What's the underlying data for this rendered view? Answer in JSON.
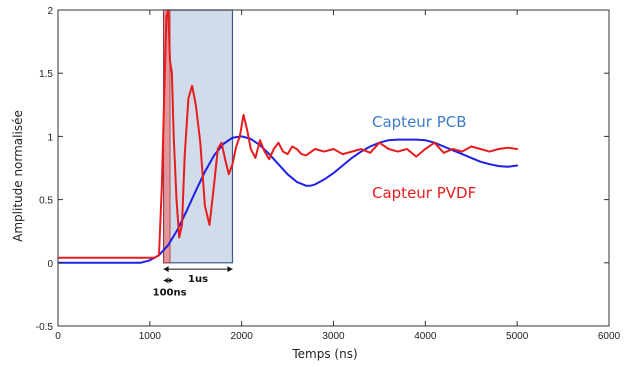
{
  "chart_data": {
    "type": "line",
    "xlabel": "Temps (ns)",
    "ylabel": "Amplitude normalisée",
    "xlim": [
      0,
      6000
    ],
    "ylim": [
      -0.5,
      2
    ],
    "xticks": [
      0,
      1000,
      2000,
      3000,
      4000,
      5000,
      6000
    ],
    "xtick_labels": [
      "0",
      "1000",
      "2000",
      "3000",
      "4000",
      "5000",
      "6000"
    ],
    "yticks": [
      -0.5,
      0,
      0.5,
      1,
      1.5,
      2
    ],
    "ytick_labels": [
      "-0.5",
      "0",
      "0.5",
      "1",
      "1.5",
      "2"
    ],
    "grid": false,
    "series": [
      {
        "name": "Capteur PCB",
        "color": "#1f1fe6",
        "x": [
          0,
          900,
          1000,
          1100,
          1200,
          1300,
          1400,
          1500,
          1600,
          1700,
          1800,
          1900,
          2000,
          2100,
          2200,
          2300,
          2400,
          2500,
          2600,
          2700,
          2750,
          2800,
          2900,
          3000,
          3100,
          3200,
          3300,
          3400,
          3500,
          3600,
          3700,
          3800,
          3900,
          4000,
          4100,
          4200,
          4300,
          4400,
          4500,
          4600,
          4700,
          4800,
          4900,
          5000
        ],
        "y": [
          0,
          0,
          0.02,
          0.06,
          0.14,
          0.26,
          0.41,
          0.57,
          0.72,
          0.85,
          0.94,
          0.99,
          1.0,
          0.98,
          0.93,
          0.86,
          0.78,
          0.7,
          0.64,
          0.61,
          0.61,
          0.62,
          0.66,
          0.71,
          0.77,
          0.83,
          0.88,
          0.92,
          0.95,
          0.97,
          0.975,
          0.975,
          0.975,
          0.97,
          0.95,
          0.92,
          0.89,
          0.86,
          0.83,
          0.8,
          0.78,
          0.765,
          0.76,
          0.77
        ]
      },
      {
        "name": "Capteur PVDF",
        "color": "#e81c1c",
        "x": [
          0,
          300,
          600,
          900,
          1050,
          1100,
          1130,
          1160,
          1180,
          1200,
          1220,
          1240,
          1260,
          1290,
          1320,
          1350,
          1380,
          1420,
          1460,
          1500,
          1550,
          1600,
          1650,
          1700,
          1740,
          1780,
          1820,
          1860,
          1900,
          1940,
          1980,
          2020,
          2060,
          2100,
          2150,
          2200,
          2250,
          2300,
          2350,
          2400,
          2450,
          2500,
          2550,
          2600,
          2650,
          2700,
          2800,
          2900,
          3000,
          3100,
          3200,
          3300,
          3400,
          3500,
          3600,
          3700,
          3800,
          3900,
          4000,
          4100,
          4200,
          4300,
          4400,
          4500,
          4600,
          4700,
          4800,
          4900,
          5000
        ],
        "y": [
          0.04,
          0.04,
          0.04,
          0.04,
          0.04,
          0.06,
          0.6,
          1.4,
          1.95,
          2.0,
          1.6,
          1.5,
          1.0,
          0.5,
          0.2,
          0.3,
          0.85,
          1.3,
          1.4,
          1.25,
          0.95,
          0.45,
          0.3,
          0.62,
          0.9,
          0.95,
          0.82,
          0.7,
          0.78,
          0.92,
          1.0,
          1.17,
          1.05,
          0.9,
          0.83,
          0.97,
          0.88,
          0.82,
          0.9,
          0.95,
          0.88,
          0.86,
          0.92,
          0.9,
          0.86,
          0.85,
          0.9,
          0.88,
          0.9,
          0.86,
          0.88,
          0.9,
          0.87,
          0.95,
          0.9,
          0.88,
          0.9,
          0.84,
          0.9,
          0.95,
          0.87,
          0.9,
          0.88,
          0.92,
          0.9,
          0.88,
          0.9,
          0.91,
          0.9
        ]
      }
    ],
    "series_labels": [
      "Capteur PCB",
      "Capteur PVDF"
    ],
    "highlight_region": {
      "x": [
        1150,
        1900
      ],
      "y": [
        0,
        2
      ],
      "color": "#c9d6e8",
      "edge": "#3c5a8c"
    },
    "narrow_region": {
      "x": [
        1150,
        1220
      ],
      "y": [
        0,
        2
      ],
      "color": "#e88080"
    },
    "annotations": [
      {
        "text": "1us",
        "span": [
          1150,
          1900
        ],
        "y": -0.05
      },
      {
        "text": "100ns",
        "span": [
          1150,
          1250
        ],
        "y": -0.14
      }
    ]
  }
}
